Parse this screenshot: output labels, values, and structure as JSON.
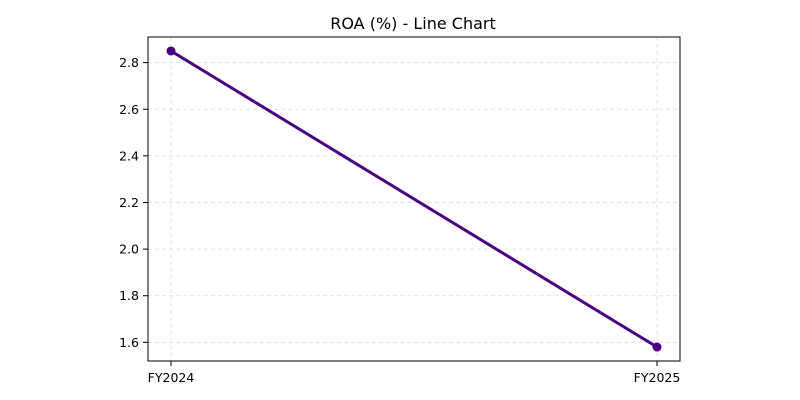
{
  "chart_data": {
    "type": "line",
    "title": "ROA (%) - Line Chart",
    "xlabel": "",
    "ylabel": "",
    "categories": [
      "FY2024",
      "FY2025"
    ],
    "series": [
      {
        "values": [
          2.85,
          1.58
        ]
      }
    ],
    "ylim": [
      1.52,
      2.91
    ],
    "yticks": [
      1.6,
      1.8,
      2.0,
      2.2,
      2.4,
      2.6,
      2.8
    ],
    "ytick_labels": [
      "1.6",
      "1.8",
      "2.0",
      "2.2",
      "2.4",
      "2.6",
      "2.8"
    ],
    "grid": true,
    "colors": {
      "line": "#4b0082",
      "marker": "#4b0082"
    }
  }
}
